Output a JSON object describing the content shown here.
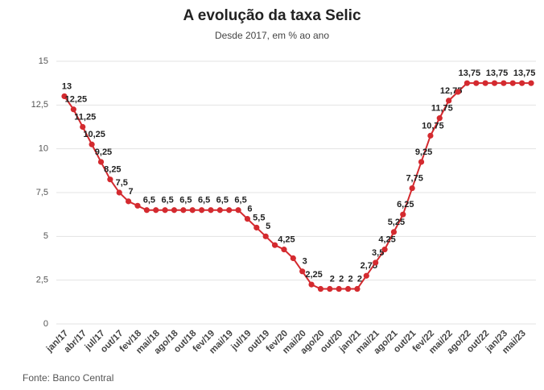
{
  "chart_data": {
    "type": "line",
    "title": "A evolução da taxa Selic",
    "subtitle": "Desde 2017, em % ao ano",
    "source": "Fonte: Banco Central",
    "categories": [
      "jan/17",
      null,
      "abr/17",
      null,
      "jul/17",
      null,
      "out/17",
      null,
      "fev/18",
      null,
      "mai/18",
      null,
      "ago/18",
      null,
      "out/18",
      null,
      "fev/19",
      null,
      "mai/19",
      null,
      "jul/19",
      null,
      "out/19",
      null,
      "fev/20",
      null,
      "mai/20",
      null,
      "ago/20",
      null,
      "out/20",
      null,
      "jan/21",
      null,
      "mai/21",
      null,
      "ago/21",
      null,
      "out/21",
      null,
      "fev/22",
      null,
      "mai/22",
      null,
      "ago/22",
      null,
      "out/22",
      null,
      "jan/23",
      null,
      "mai/23",
      null
    ],
    "series": [
      {
        "name": "Selic",
        "color": "#d42a2f",
        "values": [
          13,
          12.25,
          11.25,
          10.25,
          9.25,
          8.25,
          7.5,
          7,
          6.75,
          6.5,
          6.5,
          6.5,
          6.5,
          6.5,
          6.5,
          6.5,
          6.5,
          6.5,
          6.5,
          6.5,
          6,
          5.5,
          5,
          4.5,
          4.25,
          3.75,
          3,
          2.25,
          2,
          2,
          2,
          2,
          2,
          2.75,
          3.5,
          4.25,
          5.25,
          6.25,
          7.75,
          9.25,
          10.75,
          11.75,
          12.75,
          13.25,
          13.75,
          13.75,
          13.75,
          13.75,
          13.75,
          13.75,
          13.75,
          13.75
        ],
        "value_labels": [
          "13",
          "12,25",
          "11,25",
          "10,25",
          "9,25",
          "8,25",
          "7,5",
          "7",
          null,
          "6,5",
          null,
          "6,5",
          null,
          "6,5",
          null,
          "6,5",
          null,
          "6,5",
          null,
          "6,5",
          "6",
          "5,5",
          "5",
          null,
          "4,25",
          null,
          "3",
          "2,25",
          null,
          "2",
          "2",
          "2",
          "2",
          "2,75",
          "3,5",
          "4,25",
          "5,25",
          "6,25",
          "7,75",
          "9,25",
          "10,75",
          "11,75",
          "12,75",
          null,
          "13,75",
          null,
          null,
          "13,75",
          null,
          null,
          "13,75",
          null
        ]
      }
    ],
    "ylim": [
      0,
      15
    ],
    "yticks": [
      0,
      {
        "value": 2.5,
        "label": "2,5"
      },
      5,
      {
        "value": 7.5,
        "label": "7,5"
      },
      10,
      {
        "value": 12.5,
        "label": "12,5"
      },
      15
    ],
    "grid": true
  }
}
